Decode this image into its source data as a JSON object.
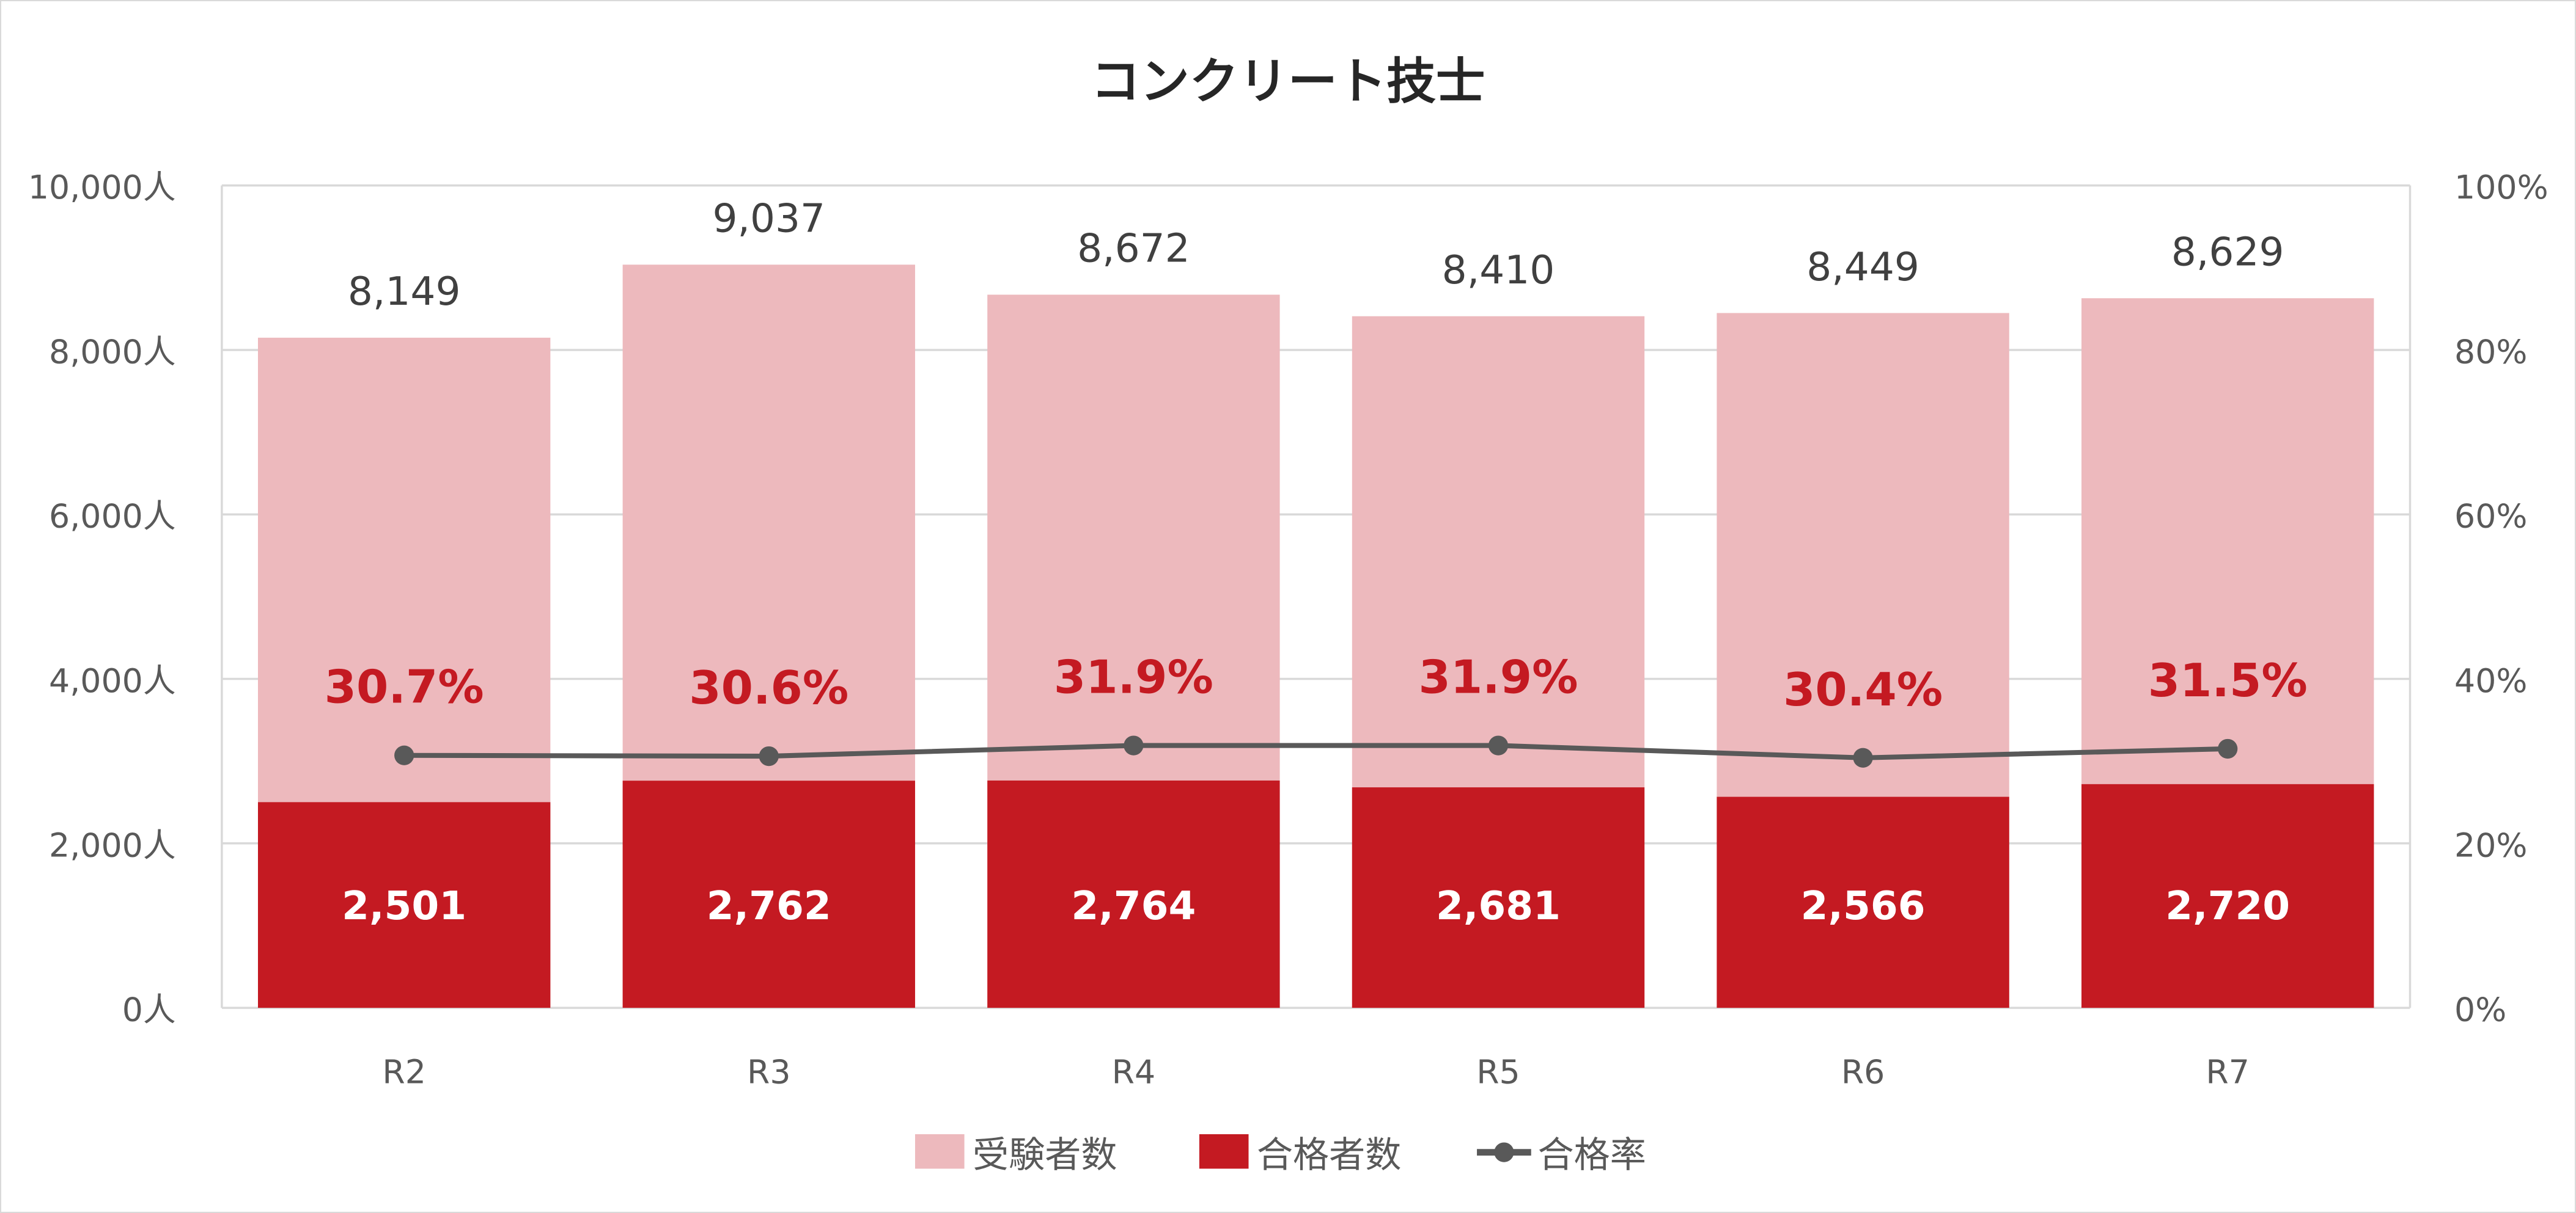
{
  "chart_data": {
    "type": "bar",
    "title": "コンクリート技士",
    "categories": [
      "R2",
      "R3",
      "R4",
      "R5",
      "R6",
      "R7"
    ],
    "series": [
      {
        "name": "受験者数",
        "type": "bar",
        "axis": "left",
        "color": "#EDB9BD",
        "values": [
          8149,
          9037,
          8672,
          8410,
          8449,
          8629
        ],
        "labels": [
          "8,149",
          "9,037",
          "8,672",
          "8,410",
          "8,449",
          "8,629"
        ]
      },
      {
        "name": "合格者数",
        "type": "bar",
        "axis": "left",
        "color": "#C41A22",
        "values": [
          2501,
          2762,
          2764,
          2681,
          2566,
          2720
        ],
        "labels": [
          "2,501",
          "2,762",
          "2,764",
          "2,681",
          "2,566",
          "2,720"
        ]
      },
      {
        "name": "合格率",
        "type": "line",
        "axis": "right",
        "color": "#595959",
        "values": [
          30.7,
          30.6,
          31.9,
          31.9,
          30.4,
          31.5
        ],
        "labels": [
          "30.7%",
          "30.6%",
          "31.9%",
          "31.9%",
          "30.4%",
          "31.5%"
        ],
        "label_color": "#C41A22"
      }
    ],
    "y_left": {
      "range": [
        0,
        10000
      ],
      "ticks": [
        "0人",
        "2,000人",
        "4,000人",
        "6,000人",
        "8,000人",
        "10,000人"
      ]
    },
    "y_right": {
      "range": [
        0,
        100
      ],
      "ticks": [
        "0%",
        "20%",
        "40%",
        "60%",
        "80%",
        "100%"
      ]
    },
    "grid": true,
    "legend_position": "bottom"
  }
}
